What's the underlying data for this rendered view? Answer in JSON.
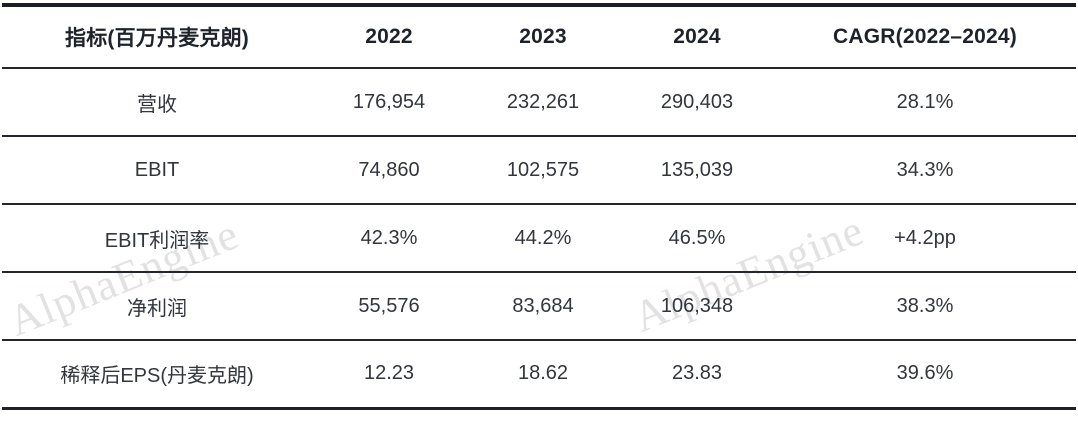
{
  "chart_data": {
    "type": "table",
    "columns": [
      "指标(百万丹麦克朗)",
      "2022",
      "2023",
      "2024",
      "CAGR(2022–2024)"
    ],
    "rows": [
      {
        "label": "营收",
        "values": [
          "176,954",
          "232,261",
          "290,403",
          "28.1%"
        ]
      },
      {
        "label": "EBIT",
        "values": [
          "74,860",
          "102,575",
          "135,039",
          "34.3%"
        ]
      },
      {
        "label": "EBIT利润率",
        "values": [
          "42.3%",
          "44.2%",
          "46.5%",
          "+4.2pp"
        ]
      },
      {
        "label": "净利润",
        "values": [
          "55,576",
          "83,684",
          "106,348",
          "38.3%"
        ]
      },
      {
        "label": "稀释后EPS(丹麦克朗)",
        "values": [
          "12.23",
          "18.62",
          "23.83",
          "39.6%"
        ]
      }
    ],
    "layout": {
      "grid": "horizontal-rules-only",
      "alignment": "center"
    }
  },
  "watermark": {
    "text": "AlphaEngine",
    "color": "#e2e2e2"
  },
  "colors": {
    "rule": "#23262c",
    "top_rule": "#1b1e24",
    "header_text": "#1e222a",
    "body_text": "#32363c",
    "background": "#ffffff"
  }
}
